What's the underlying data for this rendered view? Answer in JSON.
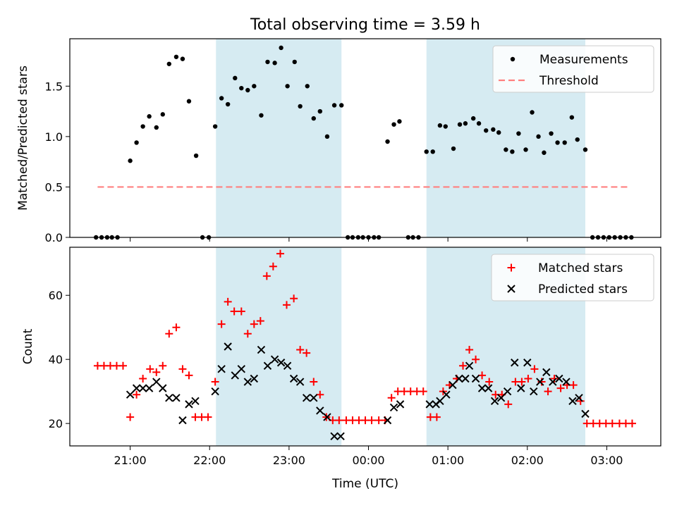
{
  "title": "Total observing time = 3.59 h",
  "chart_data": [
    {
      "type": "scatter",
      "ylabel": "Matched/Predicted stars",
      "xlabel": "",
      "xlim": [
        -0.76,
        6.68
      ],
      "ylim": [
        0,
        1.97
      ],
      "y_ticks": [
        0.0,
        0.5,
        1.0,
        1.5
      ],
      "y_tick_labels": [
        "0.0",
        "0.5",
        "1.0",
        "1.5"
      ],
      "legend_position": "top-right",
      "shaded_regions": [
        [
          1.08,
          2.66
        ],
        [
          3.73,
          5.73
        ]
      ],
      "series": [
        {
          "name": "Measurements",
          "points": [
            [
              -0.43,
              0
            ],
            [
              -0.36,
              0
            ],
            [
              -0.29,
              0
            ],
            [
              -0.23,
              0
            ],
            [
              -0.16,
              0
            ],
            [
              0,
              0.76
            ],
            [
              0.08,
              0.94
            ],
            [
              0.16,
              1.1
            ],
            [
              0.24,
              1.2
            ],
            [
              0.33,
              1.09
            ],
            [
              0.41,
              1.22
            ],
            [
              0.49,
              1.72
            ],
            [
              0.58,
              1.79
            ],
            [
              0.66,
              1.77
            ],
            [
              0.74,
              1.35
            ],
            [
              0.83,
              0.81
            ],
            [
              0.91,
              0
            ],
            [
              0.99,
              0
            ],
            [
              1.07,
              1.1
            ],
            [
              1.15,
              1.38
            ],
            [
              1.23,
              1.32
            ],
            [
              1.32,
              1.58
            ],
            [
              1.4,
              1.48
            ],
            [
              1.48,
              1.46
            ],
            [
              1.56,
              1.5
            ],
            [
              1.65,
              1.21
            ],
            [
              1.73,
              1.74
            ],
            [
              1.82,
              1.73
            ],
            [
              1.9,
              1.88
            ],
            [
              1.98,
              1.5
            ],
            [
              2.07,
              1.74
            ],
            [
              2.14,
              1.3
            ],
            [
              2.23,
              1.5
            ],
            [
              2.31,
              1.18
            ],
            [
              2.39,
              1.25
            ],
            [
              2.48,
              1.0
            ],
            [
              2.57,
              1.31
            ],
            [
              2.66,
              1.31
            ],
            [
              2.74,
              0
            ],
            [
              2.8,
              0
            ],
            [
              2.87,
              0
            ],
            [
              2.93,
              0
            ],
            [
              3.0,
              0
            ],
            [
              3.07,
              0
            ],
            [
              3.13,
              0
            ],
            [
              3.24,
              0.95
            ],
            [
              3.32,
              1.12
            ],
            [
              3.39,
              1.15
            ],
            [
              3.5,
              0
            ],
            [
              3.56,
              0
            ],
            [
              3.63,
              0
            ],
            [
              3.73,
              0.85
            ],
            [
              3.81,
              0.85
            ],
            [
              3.9,
              1.11
            ],
            [
              3.97,
              1.1
            ],
            [
              4.07,
              0.88
            ],
            [
              4.15,
              1.12
            ],
            [
              4.22,
              1.13
            ],
            [
              4.32,
              1.18
            ],
            [
              4.39,
              1.13
            ],
            [
              4.48,
              1.06
            ],
            [
              4.57,
              1.07
            ],
            [
              4.64,
              1.04
            ],
            [
              4.73,
              0.87
            ],
            [
              4.81,
              0.85
            ],
            [
              4.89,
              1.03
            ],
            [
              4.98,
              0.87
            ],
            [
              5.06,
              1.24
            ],
            [
              5.14,
              1.0
            ],
            [
              5.21,
              0.84
            ],
            [
              5.3,
              1.03
            ],
            [
              5.38,
              0.94
            ],
            [
              5.47,
              0.94
            ],
            [
              5.56,
              1.19
            ],
            [
              5.63,
              0.97
            ],
            [
              5.73,
              0.87
            ],
            [
              5.82,
              0
            ],
            [
              5.89,
              0
            ],
            [
              5.96,
              0
            ],
            [
              6.03,
              0
            ],
            [
              6.1,
              0
            ],
            [
              6.17,
              0
            ],
            [
              6.24,
              0
            ],
            [
              6.31,
              0
            ]
          ]
        },
        {
          "name": "Threshold",
          "points": [
            [
              -0.41,
              0.5
            ],
            [
              6.3,
              0.5
            ]
          ]
        }
      ]
    },
    {
      "type": "scatter",
      "ylabel": "Count",
      "xlabel": "Time (UTC)",
      "xlim": [
        -0.76,
        6.68
      ],
      "ylim": [
        13,
        75
      ],
      "y_ticks": [
        20,
        40,
        60
      ],
      "y_tick_labels": [
        "20",
        "40",
        "60"
      ],
      "x_ticks": [
        0,
        1,
        2,
        3,
        4,
        5,
        6
      ],
      "x_tick_labels": [
        "21:00",
        "22:00",
        "23:00",
        "00:00",
        "01:00",
        "02:00",
        "03:00"
      ],
      "legend_position": "top-right",
      "shaded_regions": [
        [
          1.08,
          2.66
        ],
        [
          3.73,
          5.73
        ]
      ],
      "series": [
        {
          "name": "Matched stars",
          "points": [
            [
              -0.41,
              38
            ],
            [
              -0.33,
              38
            ],
            [
              -0.25,
              38
            ],
            [
              -0.17,
              38
            ],
            [
              -0.09,
              38
            ],
            [
              0,
              22
            ],
            [
              0.08,
              29
            ],
            [
              0.16,
              34
            ],
            [
              0.25,
              37
            ],
            [
              0.33,
              36
            ],
            [
              0.41,
              38
            ],
            [
              0.49,
              48
            ],
            [
              0.58,
              50
            ],
            [
              0.66,
              37
            ],
            [
              0.74,
              35
            ],
            [
              0.82,
              22
            ],
            [
              0.9,
              22
            ],
            [
              0.98,
              22
            ],
            [
              1.07,
              33
            ],
            [
              1.15,
              51
            ],
            [
              1.23,
              58
            ],
            [
              1.31,
              55
            ],
            [
              1.4,
              55
            ],
            [
              1.48,
              48
            ],
            [
              1.56,
              51
            ],
            [
              1.64,
              52
            ],
            [
              1.72,
              66
            ],
            [
              1.8,
              69
            ],
            [
              1.89,
              73
            ],
            [
              1.97,
              57
            ],
            [
              2.06,
              59
            ],
            [
              2.14,
              43
            ],
            [
              2.22,
              42
            ],
            [
              2.31,
              33
            ],
            [
              2.39,
              29
            ],
            [
              2.47,
              22
            ],
            [
              2.55,
              21
            ],
            [
              2.63,
              21
            ],
            [
              2.72,
              21
            ],
            [
              2.8,
              21
            ],
            [
              2.88,
              21
            ],
            [
              2.96,
              21
            ],
            [
              3.04,
              21
            ],
            [
              3.13,
              21
            ],
            [
              3.21,
              21
            ],
            [
              3.29,
              28
            ],
            [
              3.37,
              30
            ],
            [
              3.45,
              30
            ],
            [
              3.53,
              30
            ],
            [
              3.61,
              30
            ],
            [
              3.69,
              30
            ],
            [
              3.78,
              22
            ],
            [
              3.86,
              22
            ],
            [
              3.94,
              30
            ],
            [
              4.02,
              32
            ],
            [
              4.11,
              34
            ],
            [
              4.19,
              38
            ],
            [
              4.27,
              43
            ],
            [
              4.35,
              40
            ],
            [
              4.43,
              35
            ],
            [
              4.52,
              33
            ],
            [
              4.6,
              29
            ],
            [
              4.68,
              29
            ],
            [
              4.76,
              26
            ],
            [
              4.85,
              33
            ],
            [
              4.93,
              33
            ],
            [
              5.01,
              34
            ],
            [
              5.09,
              37
            ],
            [
              5.18,
              33
            ],
            [
              5.26,
              30
            ],
            [
              5.34,
              34
            ],
            [
              5.42,
              31
            ],
            [
              5.5,
              32
            ],
            [
              5.58,
              32
            ],
            [
              5.67,
              27
            ],
            [
              5.75,
              20
            ],
            [
              5.83,
              20
            ],
            [
              5.91,
              20
            ],
            [
              5.99,
              20
            ],
            [
              6.07,
              20
            ],
            [
              6.16,
              20
            ],
            [
              6.24,
              20
            ],
            [
              6.32,
              20
            ]
          ]
        },
        {
          "name": "Predicted stars",
          "points": [
            [
              0.0,
              29
            ],
            [
              0.08,
              31
            ],
            [
              0.16,
              31
            ],
            [
              0.24,
              31
            ],
            [
              0.33,
              33
            ],
            [
              0.41,
              31
            ],
            [
              0.49,
              28
            ],
            [
              0.58,
              28
            ],
            [
              0.66,
              21
            ],
            [
              0.74,
              26
            ],
            [
              0.82,
              27
            ],
            [
              1.07,
              30
            ],
            [
              1.15,
              37
            ],
            [
              1.23,
              44
            ],
            [
              1.32,
              35
            ],
            [
              1.4,
              37
            ],
            [
              1.48,
              33
            ],
            [
              1.56,
              34
            ],
            [
              1.65,
              43
            ],
            [
              1.73,
              38
            ],
            [
              1.82,
              40
            ],
            [
              1.9,
              39
            ],
            [
              1.98,
              38
            ],
            [
              2.06,
              34
            ],
            [
              2.14,
              33
            ],
            [
              2.22,
              28
            ],
            [
              2.31,
              28
            ],
            [
              2.39,
              24
            ],
            [
              2.48,
              22
            ],
            [
              2.57,
              16
            ],
            [
              2.65,
              16
            ],
            [
              3.24,
              21
            ],
            [
              3.32,
              25
            ],
            [
              3.4,
              26
            ],
            [
              3.77,
              26
            ],
            [
              3.85,
              26
            ],
            [
              3.9,
              27
            ],
            [
              3.98,
              29
            ],
            [
              4.06,
              32
            ],
            [
              4.14,
              34
            ],
            [
              4.22,
              34
            ],
            [
              4.27,
              38
            ],
            [
              4.35,
              34
            ],
            [
              4.43,
              31
            ],
            [
              4.51,
              31
            ],
            [
              4.59,
              27
            ],
            [
              4.67,
              28
            ],
            [
              4.75,
              30
            ],
            [
              4.84,
              39
            ],
            [
              4.92,
              31
            ],
            [
              5.0,
              39
            ],
            [
              5.08,
              30
            ],
            [
              5.16,
              33
            ],
            [
              5.24,
              36
            ],
            [
              5.32,
              33
            ],
            [
              5.4,
              34
            ],
            [
              5.49,
              33
            ],
            [
              5.57,
              27
            ],
            [
              5.65,
              28
            ],
            [
              5.73,
              23
            ]
          ]
        }
      ]
    }
  ],
  "colors": {
    "measurements": "#000000",
    "threshold": "#ff7f7f",
    "matched": "#ff0000",
    "predicted": "#000000",
    "shade": "#add8e6"
  }
}
